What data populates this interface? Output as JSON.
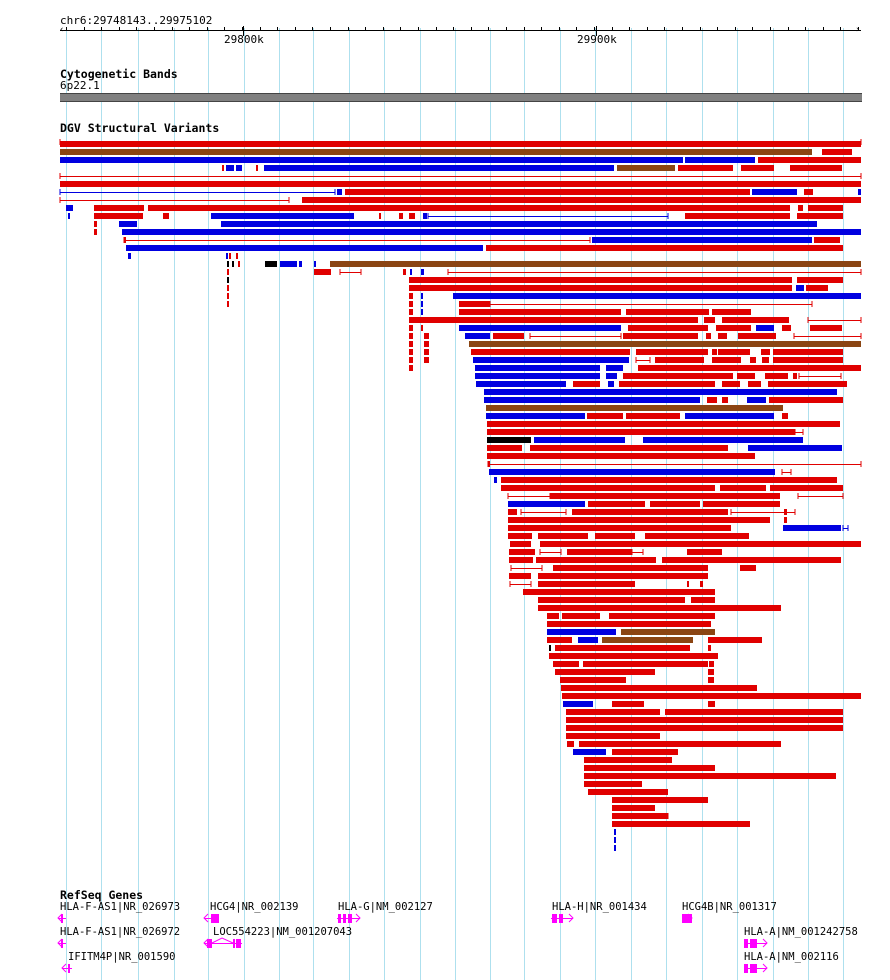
{
  "ruler": {
    "location": "chr6:29748143..29975102",
    "ticks": [
      {
        "label": "29800k",
        "pos": 29800000
      },
      {
        "label": "29900k",
        "pos": 29900000
      }
    ],
    "start": 29748143,
    "end": 29975102
  },
  "tracks": {
    "cytoband": {
      "title": "Cytogenetic Bands",
      "band_label": "6p22.1"
    },
    "dgv": {
      "title": "DGV Structural Variants"
    },
    "refseq": {
      "title": "RefSeq Genes"
    }
  },
  "colors": {
    "gain": "#e00000",
    "loss": "#0000e0",
    "gain_loss": "#8b4513",
    "other": "#000000",
    "gene": "#ff00ff",
    "grid": "#aee0ee",
    "band": "#808080"
  },
  "genes": [
    {
      "label": "HLA-F-AS1|NR_026973"
    },
    {
      "label": "HCG4|NR_002139"
    },
    {
      "label": "HLA-G|NM_002127"
    },
    {
      "label": "HLA-H|NR_001434"
    },
    {
      "label": "HCG4B|NR_001317"
    },
    {
      "label": "HLA-F-AS1|NR_026972"
    },
    {
      "label": "LOC554223|NM_001207043"
    },
    {
      "label": "HLA-A|NM_001242758"
    },
    {
      "label": "IFITM4P|NR_001590"
    },
    {
      "label": "HLA-A|NM_002116"
    }
  ]
}
